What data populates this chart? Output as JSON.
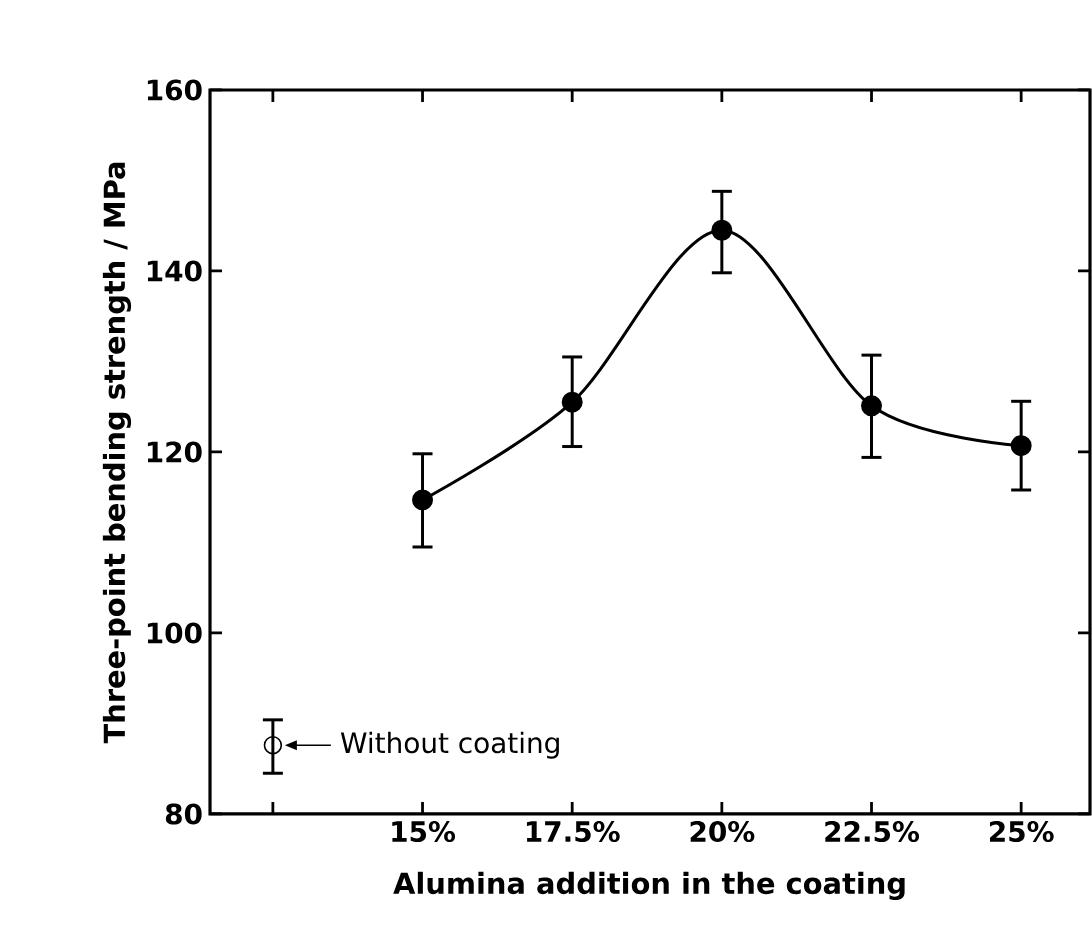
{
  "chart_data": {
    "type": "line",
    "xlabel": "Alumina addition in the coating",
    "ylabel": "Three-point bending strength / MPa",
    "categories": [
      null,
      "15%",
      "17.5%",
      "20%",
      "22.5%",
      "25%"
    ],
    "ylim": [
      80,
      160
    ],
    "yticks": [
      80,
      100,
      120,
      140,
      160
    ],
    "grid": false,
    "series": [
      {
        "type": "scatter",
        "marker": "circle",
        "color": "#000000",
        "values": [
          87.6,
          null,
          null,
          null,
          null,
          null
        ],
        "errors": [
          [
            84.5,
            90.4
          ],
          null,
          null,
          null,
          null,
          null
        ]
      },
      {
        "marker": "circle",
        "color": "#000000",
        "values": [
          null,
          114.7,
          125.5,
          144.5,
          125.1,
          120.7
        ],
        "errors": [
          null,
          [
            109.5,
            119.8
          ],
          [
            120.6,
            130.5
          ],
          [
            139.8,
            148.8
          ],
          [
            119.4,
            130.7
          ],
          [
            115.8,
            125.6
          ]
        ]
      }
    ],
    "annotations": [
      "Without coating"
    ]
  }
}
